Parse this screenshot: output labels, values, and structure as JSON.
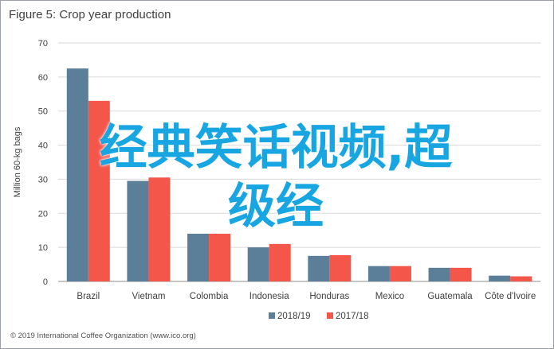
{
  "figure": {
    "title": "Figure 5: Crop year production",
    "footer": "© 2019 International Coffee Organization (www.ico.org)"
  },
  "overlay": {
    "line1": "经典笑话视频,超",
    "line2": "级经"
  },
  "colors": {
    "series1": "#5c7f99",
    "series2": "#f4564a",
    "overlay_text": "#17a6e2",
    "grid": "#d9d9d9",
    "text": "#404040"
  },
  "chart_data": {
    "type": "bar",
    "title": "Figure 5: Crop year production",
    "xlabel": "",
    "ylabel": "Million 60-kg bags",
    "ylim": [
      0,
      70
    ],
    "yticks": [
      0,
      10,
      20,
      30,
      40,
      50,
      60,
      70
    ],
    "grid": true,
    "legend_position": "bottom",
    "categories": [
      "Brazil",
      "Vietnam",
      "Colombia",
      "Indonesia",
      "Honduras",
      "Mexico",
      "Guatemala",
      "Côte d'Ivoire"
    ],
    "series": [
      {
        "name": "2018/19",
        "color": "#5c7f99",
        "values": [
          62.5,
          29.5,
          14,
          10,
          7.5,
          4.5,
          4,
          1.7
        ]
      },
      {
        "name": "2017/18",
        "color": "#f4564a",
        "values": [
          53,
          30.5,
          14,
          11,
          7.7,
          4.5,
          4,
          1.5
        ]
      }
    ]
  }
}
